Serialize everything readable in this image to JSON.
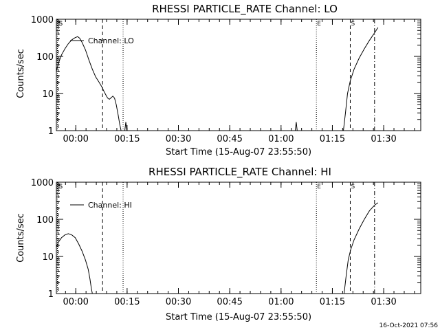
{
  "timestamp": "16-Oct-2021 07:56",
  "chart_data": [
    {
      "type": "line",
      "title": "RHESSI PARTICLE_RATE Channel: LO",
      "xlabel": "Start Time (15-Aug-07 23:55:50)",
      "ylabel": "Counts/sec",
      "y_scale": "log",
      "ylim": [
        1,
        1000
      ],
      "x_unit": "minutes after 23:55:50",
      "xlim": [
        -1.5,
        105
      ],
      "xticks": [
        {
          "v": 4.17,
          "label": "00:00"
        },
        {
          "v": 19.17,
          "label": "00:15"
        },
        {
          "v": 34.17,
          "label": "00:30"
        },
        {
          "v": 49.17,
          "label": "00:45"
        },
        {
          "v": 64.17,
          "label": "01:00"
        },
        {
          "v": 79.17,
          "label": "01:15"
        },
        {
          "v": 94.17,
          "label": "01:30"
        }
      ],
      "yticks": [
        {
          "v": 1,
          "label": "1"
        },
        {
          "v": 10,
          "label": "10"
        },
        {
          "v": 100,
          "label": "100"
        },
        {
          "v": 1000,
          "label": "1000"
        }
      ],
      "legend": {
        "label": "Channel: LO",
        "placement": "top-left"
      },
      "markers": [
        {
          "label": "E",
          "x": -1.2,
          "style": "dotted"
        },
        {
          "label": "S",
          "x": -1.0,
          "style": "dashed"
        },
        {
          "label": "",
          "x": 12.0,
          "style": "dashed"
        },
        {
          "label": "",
          "x": 18.0,
          "style": "dotted"
        },
        {
          "label": "E",
          "x": 74.5,
          "style": "dotted"
        },
        {
          "label": "S",
          "x": 84.4,
          "style": "dashed"
        },
        {
          "label": "",
          "x": 91.5,
          "style": "dashdot"
        }
      ],
      "series": [
        {
          "name": "Channel: LO",
          "points": [
            [
              -1.5,
              40
            ],
            [
              -0.8,
              70
            ],
            [
              0,
              110
            ],
            [
              1,
              160
            ],
            [
              2,
              220
            ],
            [
              3,
              280
            ],
            [
              4,
              320
            ],
            [
              4.7,
              340
            ],
            [
              5.3,
              310
            ],
            [
              6,
              240
            ],
            [
              7,
              150
            ],
            [
              8,
              80
            ],
            [
              9,
              45
            ],
            [
              10,
              28
            ],
            [
              11,
              20
            ],
            [
              11.8,
              15
            ],
            [
              12.5,
              11
            ],
            [
              13,
              9
            ],
            [
              13.5,
              7.5
            ],
            [
              14,
              7
            ],
            [
              14.6,
              7.8
            ],
            [
              15,
              8.5
            ],
            [
              15.5,
              7.5
            ],
            [
              16,
              5
            ],
            [
              16.6,
              2.5
            ],
            [
              17,
              1.5
            ],
            [
              17.4,
              1
            ],
            null,
            [
              18.5,
              1
            ],
            [
              18.8,
              1.7
            ],
            [
              19.1,
              1
            ],
            null,
            [
              68.3,
              1
            ],
            [
              68.6,
              1.7
            ],
            [
              68.9,
              1
            ],
            null,
            [
              82.4,
              1
            ],
            [
              83,
              3
            ],
            [
              83.6,
              10
            ],
            [
              84.4,
              22
            ],
            [
              85.5,
              45
            ],
            [
              87,
              90
            ],
            [
              88.5,
              160
            ],
            [
              90,
              270
            ],
            [
              91.5,
              430
            ],
            [
              92.5,
              600
            ]
          ]
        }
      ]
    },
    {
      "type": "line",
      "title": "RHESSI PARTICLE_RATE Channel: HI",
      "xlabel": "Start Time (15-Aug-07 23:55:50)",
      "ylabel": "Counts/sec",
      "y_scale": "log",
      "ylim": [
        1,
        1000
      ],
      "x_unit": "minutes after 23:55:50",
      "xlim": [
        -1.5,
        105
      ],
      "xticks": [
        {
          "v": 4.17,
          "label": "00:00"
        },
        {
          "v": 19.17,
          "label": "00:15"
        },
        {
          "v": 34.17,
          "label": "00:30"
        },
        {
          "v": 49.17,
          "label": "00:45"
        },
        {
          "v": 64.17,
          "label": "01:00"
        },
        {
          "v": 79.17,
          "label": "01:15"
        },
        {
          "v": 94.17,
          "label": "01:30"
        }
      ],
      "yticks": [
        {
          "v": 1,
          "label": "1"
        },
        {
          "v": 10,
          "label": "10"
        },
        {
          "v": 100,
          "label": "100"
        },
        {
          "v": 1000,
          "label": "1000"
        }
      ],
      "legend": {
        "label": "Channel: HI",
        "placement": "top-left"
      },
      "markers": [
        {
          "label": "E",
          "x": -1.2,
          "style": "dotted"
        },
        {
          "label": "S",
          "x": -1.0,
          "style": "dashed"
        },
        {
          "label": "",
          "x": 12.0,
          "style": "dashed"
        },
        {
          "label": "",
          "x": 18.0,
          "style": "dotted"
        },
        {
          "label": "E",
          "x": 74.5,
          "style": "dotted"
        },
        {
          "label": "S",
          "x": 84.4,
          "style": "dashed"
        },
        {
          "label": "",
          "x": 91.5,
          "style": "dashdot"
        }
      ],
      "series": [
        {
          "name": "Channel: HI",
          "points": [
            [
              -1.5,
              18
            ],
            [
              -0.8,
              25
            ],
            [
              0,
              32
            ],
            [
              1,
              38
            ],
            [
              2,
              41
            ],
            [
              3,
              38
            ],
            [
              4,
              32
            ],
            [
              5,
              22
            ],
            [
              6,
              14
            ],
            [
              7,
              8
            ],
            [
              7.8,
              4.5
            ],
            [
              8.3,
              2.5
            ],
            [
              8.7,
              1.4
            ],
            [
              9,
              1
            ],
            null,
            [
              82.6,
              1
            ],
            [
              83.2,
              3
            ],
            [
              83.8,
              8
            ],
            [
              84.5,
              15
            ],
            [
              85.5,
              28
            ],
            [
              87,
              55
            ],
            [
              88.5,
              100
            ],
            [
              90,
              170
            ],
            [
              91.5,
              240
            ],
            [
              92.5,
              280
            ]
          ]
        }
      ]
    }
  ]
}
